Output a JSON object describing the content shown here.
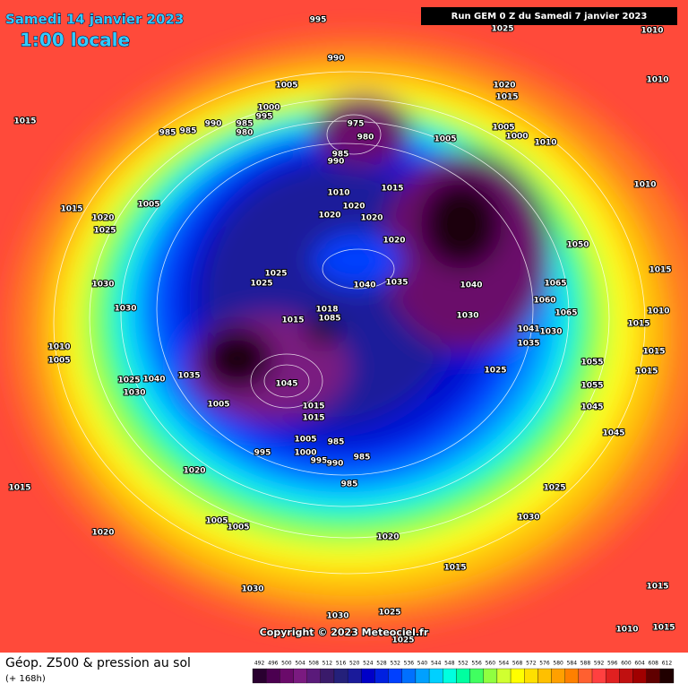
{
  "header": {
    "title": "Samedi 14 janvier 2023",
    "time": "1:00 locale",
    "run": "Run GEM 0 Z du Samedi 7 janvier 2023"
  },
  "copyright": "Copyright © 2023 Meteociel.fr",
  "footer": {
    "title": "Géop. Z500 & pression au sol",
    "subtitle": "(+ 168h)"
  },
  "colorbar": {
    "values": [
      492,
      496,
      500,
      504,
      508,
      512,
      516,
      520,
      524,
      528,
      532,
      536,
      540,
      544,
      548,
      552,
      556,
      560,
      564,
      568,
      572,
      576,
      580,
      584,
      588,
      592,
      596,
      600,
      604,
      608,
      612
    ],
    "colors": [
      "#2a0030",
      "#4b0050",
      "#6a0a6a",
      "#7a1a80",
      "#5a1a7a",
      "#3a1a6a",
      "#24207a",
      "#1a1a9a",
      "#0000c8",
      "#0020e0",
      "#0040ff",
      "#0070ff",
      "#00a0ff",
      "#00d0ff",
      "#00ffe0",
      "#00ffa0",
      "#40ff60",
      "#90ff40",
      "#d0ff30",
      "#ffff00",
      "#ffe000",
      "#ffc000",
      "#ffa000",
      "#ff8000",
      "#ff6030",
      "#ff4040",
      "#e02020",
      "#c01010",
      "#a00000",
      "#600000",
      "#200000"
    ]
  },
  "pressure_labels": [
    995,
    990,
    1005,
    1000,
    995,
    990,
    985,
    980,
    985,
    985,
    975,
    980,
    985,
    990,
    1005,
    1015,
    1015,
    1010,
    1020,
    1020,
    1020,
    1005,
    1015,
    1020,
    1025,
    1020,
    1050,
    1025,
    1025,
    1035,
    1040,
    1040,
    1065,
    1030,
    1030,
    1060,
    1065,
    1015,
    1018,
    1085,
    1030,
    1041,
    1030,
    1035,
    1010,
    1005,
    1035,
    1040,
    1025,
    1030,
    1045,
    1025,
    1055,
    1055,
    1045,
    1045,
    1005,
    1015,
    1015,
    985,
    1005,
    1000,
    995,
    995,
    990,
    985,
    985,
    1020,
    1015,
    1025,
    1030,
    1005,
    1005,
    1020,
    1020,
    1015,
    1030,
    1030,
    1025,
    1025,
    1015,
    1010,
    1015,
    1010,
    1010,
    1025,
    1020,
    1015,
    1005,
    1000,
    1010,
    1010,
    1015,
    1015,
    1010,
    1015,
    1015
  ]
}
